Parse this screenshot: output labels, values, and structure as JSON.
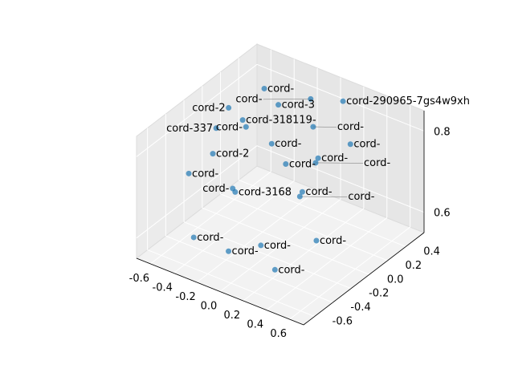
{
  "chart_data": {
    "type": "scatter3d",
    "title": "",
    "xlabel": "",
    "ylabel": "",
    "zlabel": "",
    "xlim": [
      -0.72,
      0.72
    ],
    "ylim": [
      -0.72,
      0.6
    ],
    "zlim": [
      0.55,
      0.85
    ],
    "xticks": [
      "-0.6",
      "-0.4",
      "-0.2",
      "0.0",
      "0.2",
      "0.4",
      "0.6"
    ],
    "xtick_values": [
      -0.6,
      -0.4,
      -0.2,
      0.0,
      0.2,
      0.4,
      0.6
    ],
    "yticks": [
      "-0.6",
      "-0.4",
      "-0.2",
      "0.0",
      "0.2",
      "0.4"
    ],
    "ytick_values": [
      -0.6,
      -0.4,
      -0.2,
      0.0,
      0.2,
      0.4
    ],
    "zticks": [
      "0.6",
      "0.8"
    ],
    "ztick_values": [
      0.6,
      0.8
    ],
    "grid": true,
    "marker_color": "#1f77b4",
    "points": [
      {
        "label": "cord-290965-7gs4w9xh",
        "x": 0.1,
        "y": 0.5,
        "z": 0.82
      },
      {
        "label": "cord-318119-",
        "x": -0.45,
        "y": 0.1,
        "z": 0.78
      },
      {
        "label": "cord-337",
        "x": -0.6,
        "y": 0.0,
        "z": 0.76
      },
      {
        "label": "cord-3168",
        "x": -0.2,
        "y": -0.3,
        "z": 0.7
      },
      {
        "label": "cord-2",
        "x": -0.55,
        "y": -0.1,
        "z": 0.72
      },
      {
        "label": "cord-3",
        "x": -0.3,
        "y": 0.3,
        "z": 0.8
      },
      {
        "label": "cord-",
        "x": -0.6,
        "y": -0.3,
        "z": 0.7
      },
      {
        "label": "cord-",
        "x": -0.5,
        "y": 0.4,
        "z": 0.8
      },
      {
        "label": "cord-2",
        "x": -0.65,
        "y": 0.2,
        "z": 0.77
      },
      {
        "label": "cord-",
        "x": 0.0,
        "y": 0.3,
        "z": 0.78
      },
      {
        "label": "cord-",
        "x": 0.2,
        "y": 0.1,
        "z": 0.76
      },
      {
        "label": "cord-",
        "x": 0.3,
        "y": -0.2,
        "z": 0.74
      },
      {
        "label": "cord-",
        "x": 0.1,
        "y": -0.4,
        "z": 0.62
      },
      {
        "label": "cord-",
        "x": -0.1,
        "y": -0.5,
        "z": 0.6
      },
      {
        "label": "cord-",
        "x": 0.3,
        "y": -0.5,
        "z": 0.6
      },
      {
        "label": "cord-",
        "x": -0.4,
        "y": -0.5,
        "z": 0.6
      },
      {
        "label": "cord-",
        "x": 0.0,
        "y": 0.0,
        "z": 0.74
      },
      {
        "label": "cord-",
        "x": -0.2,
        "y": 0.1,
        "z": 0.75
      },
      {
        "label": "cord-",
        "x": 0.4,
        "y": 0.2,
        "z": 0.8
      },
      {
        "label": "cord-",
        "x": -0.1,
        "y": 0.4,
        "z": 0.82
      },
      {
        "label": "cord-",
        "x": 0.2,
        "y": -0.1,
        "z": 0.7
      },
      {
        "label": "cord-",
        "x": -0.3,
        "y": -0.2,
        "z": 0.68
      },
      {
        "label": "cord-",
        "x": 0.5,
        "y": -0.3,
        "z": 0.66
      },
      {
        "label": "cord-",
        "x": -0.5,
        "y": 0.2,
        "z": 0.74
      },
      {
        "label": "cord-",
        "x": 0.1,
        "y": 0.2,
        "z": 0.72
      }
    ]
  }
}
